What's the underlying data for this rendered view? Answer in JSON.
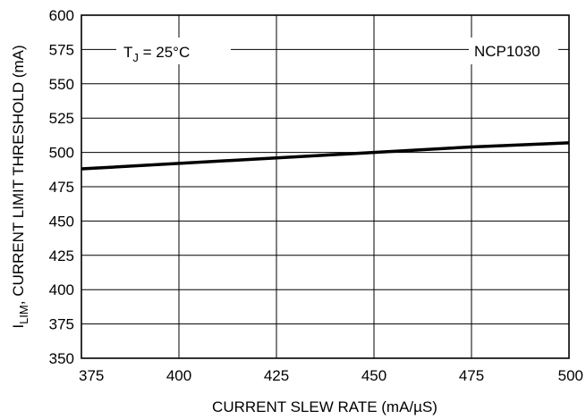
{
  "chart_data": {
    "type": "line",
    "title": "",
    "xlabel": "CURRENT SLEW RATE (mA/µS)",
    "ylabel": {
      "prefix": "I",
      "subscript": "LIM",
      "text": ", CURRENT LIMIT THRESHOLD (mA)"
    },
    "xlim": [
      375,
      500
    ],
    "ylim": [
      350,
      600
    ],
    "x_ticks": [
      375,
      400,
      425,
      450,
      475,
      500
    ],
    "y_ticks": [
      350,
      375,
      400,
      425,
      450,
      475,
      500,
      525,
      550,
      575,
      600
    ],
    "grid": true,
    "series": [
      {
        "x": [
          375,
          400,
          425,
          450,
          475,
          500
        ],
        "values": [
          488,
          492,
          496,
          500,
          504,
          507
        ]
      }
    ],
    "annotations": {
      "temperature": {
        "prefix": "T",
        "subscript": "J",
        "text": " = 25°C"
      },
      "part": "NCP1030"
    }
  }
}
